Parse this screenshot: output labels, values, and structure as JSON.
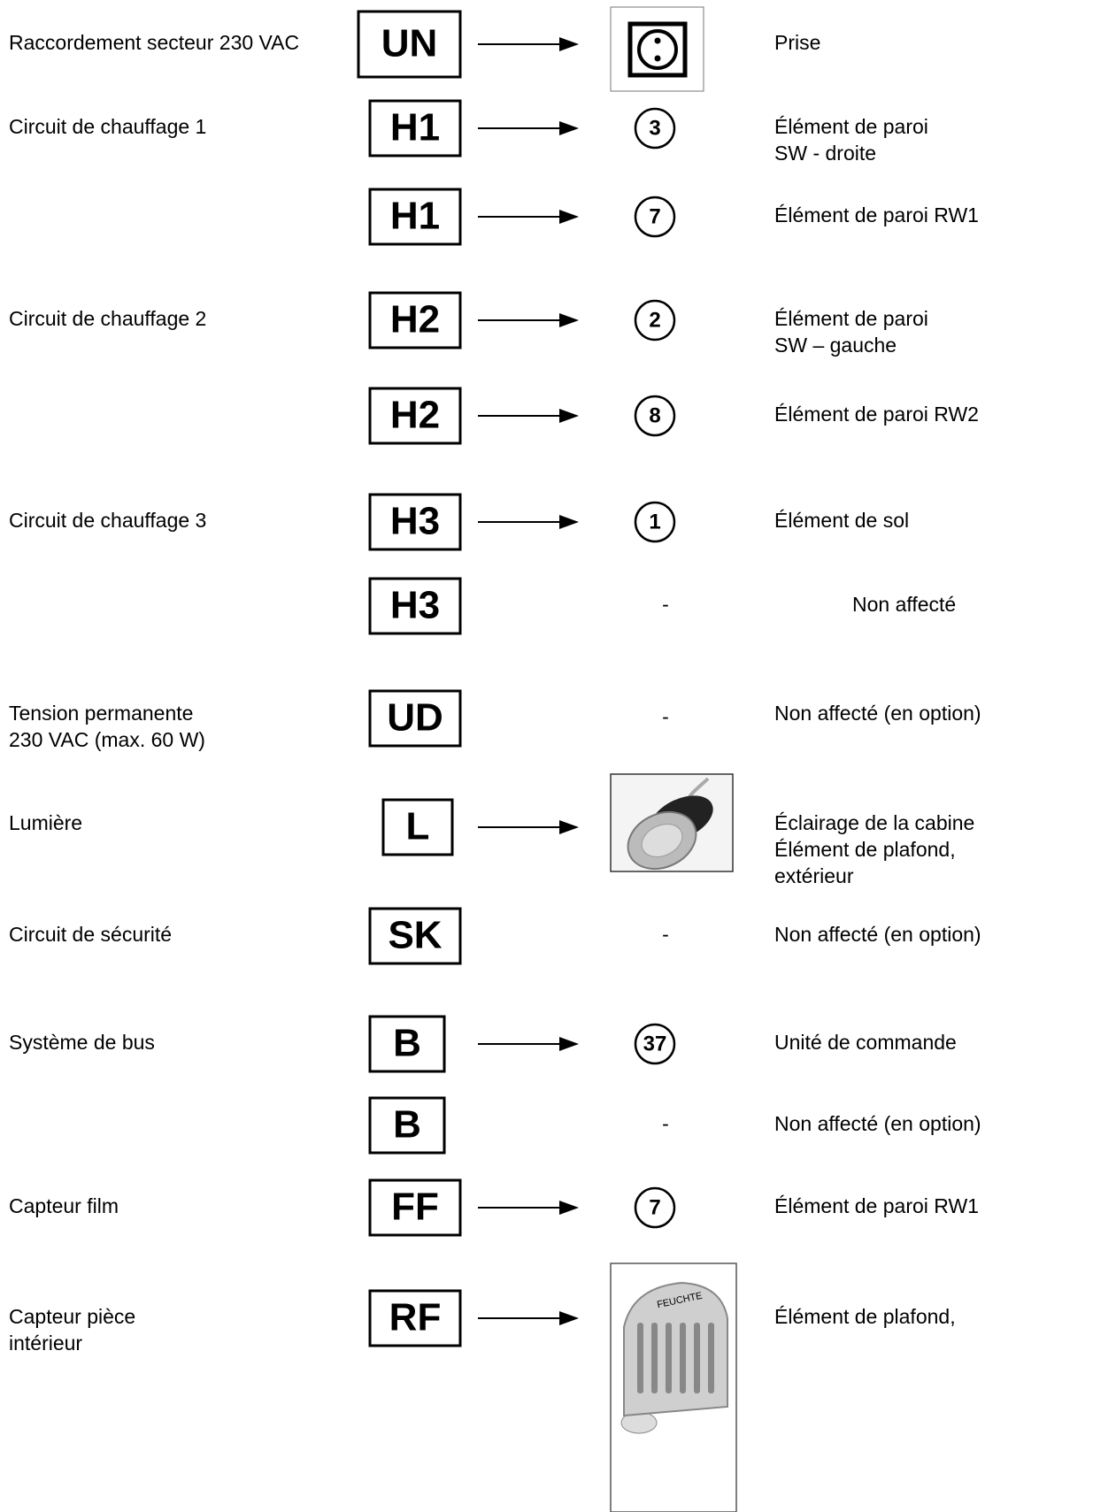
{
  "rows": [
    {
      "label": [
        "Raccordement secteur 230 VAC"
      ],
      "code": "UN",
      "description": [
        "Prise"
      ]
    },
    {
      "label": [
        "Circuit de chauffage 1"
      ],
      "code": "H1",
      "marker": "3",
      "description": [
        "Élément de paroi",
        "SW - droite"
      ]
    },
    {
      "code": "H1",
      "marker": "7",
      "description": [
        "Élément de paroi RW1"
      ]
    },
    {
      "label": [
        "Circuit de chauffage 2"
      ],
      "code": "H2",
      "marker": "2",
      "description": [
        "Élément de paroi",
        "SW – gauche"
      ]
    },
    {
      "code": "H2",
      "marker": "8",
      "description": [
        "Élément de paroi RW2"
      ]
    },
    {
      "label": [
        "Circuit de chauffage 3"
      ],
      "code": "H3",
      "marker": "1",
      "description": [
        "Élément de sol"
      ]
    },
    {
      "code": "H3",
      "dash": "-",
      "description": [
        "Non affecté"
      ]
    },
    {
      "label": [
        "Tension permanente",
        "230 VAC (max. 60 W)"
      ],
      "code": "UD",
      "dash": "-",
      "description": [
        "Non affecté (en option)"
      ]
    },
    {
      "label": [
        "Lumière"
      ],
      "code": "L",
      "description": [
        "Éclairage de la cabine",
        "Élément de plafond,",
        "extérieur"
      ]
    },
    {
      "label": [
        "Circuit de sécurité"
      ],
      "code": "SK",
      "dash": "-",
      "description": [
        "Non affecté (en option)"
      ]
    },
    {
      "label": [
        "Système de bus"
      ],
      "code": "B",
      "marker": "37",
      "description": [
        "Unité de commande"
      ]
    },
    {
      "code": "B",
      "dash": "-",
      "description": [
        "Non affecté (en option)"
      ]
    },
    {
      "label": [
        "Capteur film"
      ],
      "code": "FF",
      "marker": "7",
      "description": [
        "Élément de paroi RW1"
      ]
    },
    {
      "label": [
        "Capteur pièce",
        "intérieur"
      ],
      "code": "RF",
      "image_text": "FEUCHTE",
      "description": [
        "Élément de plafond,"
      ]
    }
  ]
}
